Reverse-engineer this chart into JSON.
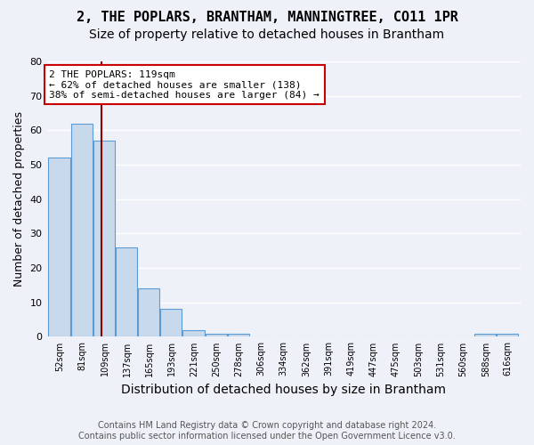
{
  "title": "2, THE POPLARS, BRANTHAM, MANNINGTREE, CO11 1PR",
  "subtitle": "Size of property relative to detached houses in Brantham",
  "xlabel": "Distribution of detached houses by size in Brantham",
  "ylabel": "Number of detached properties",
  "footnote1": "Contains HM Land Registry data © Crown copyright and database right 2024.",
  "footnote2": "Contains public sector information licensed under the Open Government Licence v3.0.",
  "bin_labels": [
    "52sqm",
    "81sqm",
    "109sqm",
    "137sqm",
    "165sqm",
    "193sqm",
    "221sqm",
    "250sqm",
    "278sqm",
    "306sqm",
    "334sqm",
    "362sqm",
    "391sqm",
    "419sqm",
    "447sqm",
    "475sqm",
    "503sqm",
    "531sqm",
    "560sqm",
    "588sqm",
    "616sqm"
  ],
  "bin_left_edges": [
    52,
    81,
    109,
    137,
    165,
    193,
    221,
    250,
    278,
    306,
    334,
    362,
    391,
    419,
    447,
    475,
    503,
    531,
    560,
    588,
    616
  ],
  "bin_widths": [
    29,
    28,
    28,
    28,
    28,
    28,
    29,
    28,
    28,
    28,
    28,
    29,
    28,
    28,
    28,
    28,
    28,
    29,
    28,
    28,
    28
  ],
  "heights": [
    52,
    62,
    57,
    26,
    14,
    8,
    2,
    1,
    1,
    0,
    0,
    0,
    0,
    0,
    0,
    0,
    0,
    0,
    0,
    1,
    1
  ],
  "bar_color": "#c8d9eb",
  "bar_edge_color": "#5b9bd5",
  "property_size": 119,
  "property_line_color": "#8b0000",
  "annotation_text": "2 THE POPLARS: 119sqm\n← 62% of detached houses are smaller (138)\n38% of semi-detached houses are larger (84) →",
  "annotation_box_color": "#ffffff",
  "annotation_box_edge_color": "#cc0000",
  "ylim": [
    0,
    80
  ],
  "yticks": [
    0,
    10,
    20,
    30,
    40,
    50,
    60,
    70,
    80
  ],
  "background_color": "#eef2f8",
  "grid_color": "#ffffff",
  "title_fontsize": 11,
  "subtitle_fontsize": 10,
  "axis_label_fontsize": 9,
  "tick_fontsize": 7,
  "annotation_fontsize": 8,
  "footnote_fontsize": 7
}
